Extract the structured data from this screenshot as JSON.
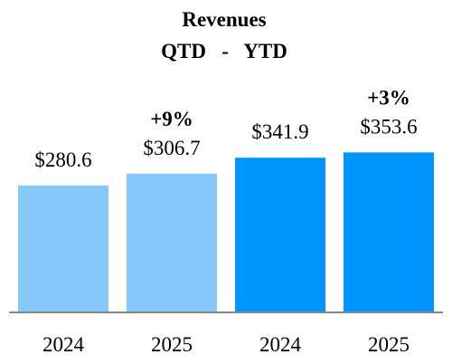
{
  "chart_data": {
    "type": "bar",
    "title": "Revenues",
    "subtitle": "QTD - YTD",
    "categories": [
      "2024",
      "2025",
      "2024",
      "2025"
    ],
    "values": [
      280.6,
      306.7,
      341.9,
      353.6
    ],
    "value_labels": [
      "$280.6",
      "$306.7",
      "$341.9",
      "$353.6"
    ],
    "groups": [
      {
        "name": "QTD",
        "bars": [
          0,
          1
        ],
        "color": "#87C8FA",
        "change": "+9%"
      },
      {
        "name": "YTD",
        "bars": [
          2,
          3
        ],
        "color": "#0095FA",
        "change": "+3%"
      }
    ],
    "ylim": [
      0,
      400
    ],
    "xlabel": "",
    "ylabel": "",
    "grid": false,
    "legend": "none",
    "axis_color": "#888888"
  }
}
